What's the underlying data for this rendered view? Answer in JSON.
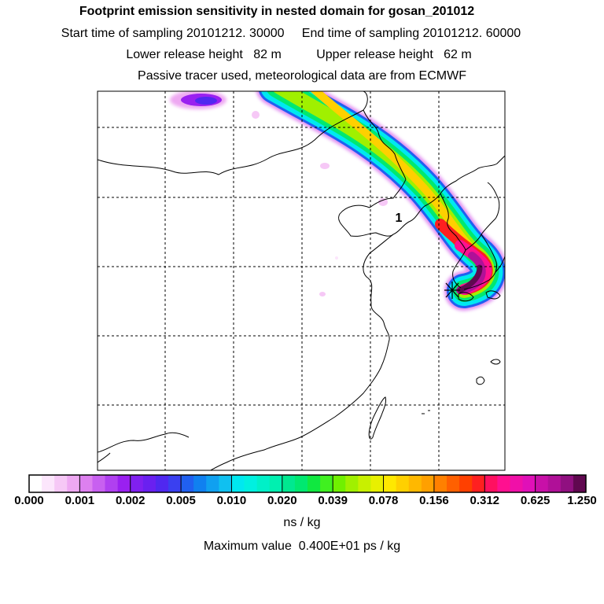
{
  "header": {
    "title": "Footprint emission sensitivity in nested domain for gosan_201012",
    "sampling_line": "Start time of sampling 20101212. 30000     End time of sampling 20101212. 60000",
    "height_line": "Lower release height   82 m          Upper release height   62 m",
    "tracer_line": "Passive tracer used, meteorological data are from ECMWF"
  },
  "map": {
    "receptor_label": "1"
  },
  "colorbar": {
    "labels": [
      "0.000",
      "0.001",
      "0.002",
      "0.005",
      "0.010",
      "0.020",
      "0.039",
      "0.078",
      "0.156",
      "0.312",
      "0.625",
      "1.250"
    ],
    "colors": [
      "#ffffff",
      "#fce6fc",
      "#f6c8f6",
      "#eea8f2",
      "#dd80ef",
      "#c860f0",
      "#b040f0",
      "#9a20f0",
      "#8020f0",
      "#6a20f0",
      "#5028f0",
      "#3a40f0",
      "#2060f0",
      "#1080f0",
      "#10a0f0",
      "#10c0f0",
      "#00e8f0",
      "#00f0e0",
      "#00f0c8",
      "#00f0b0",
      "#00e890",
      "#00e870",
      "#10e840",
      "#40f020",
      "#70f000",
      "#a0f000",
      "#c8f000",
      "#e8f000",
      "#ffe800",
      "#ffd000",
      "#ffb800",
      "#ffa000",
      "#ff8000",
      "#ff6000",
      "#ff4000",
      "#ff2020",
      "#ff1060",
      "#ff1090",
      "#f010a8",
      "#e010b8",
      "#c810a8",
      "#b01098",
      "#901080",
      "#600850"
    ],
    "unit": "ns / kg",
    "maximum": "Maximum value  0.400E+01 ps / kg"
  }
}
